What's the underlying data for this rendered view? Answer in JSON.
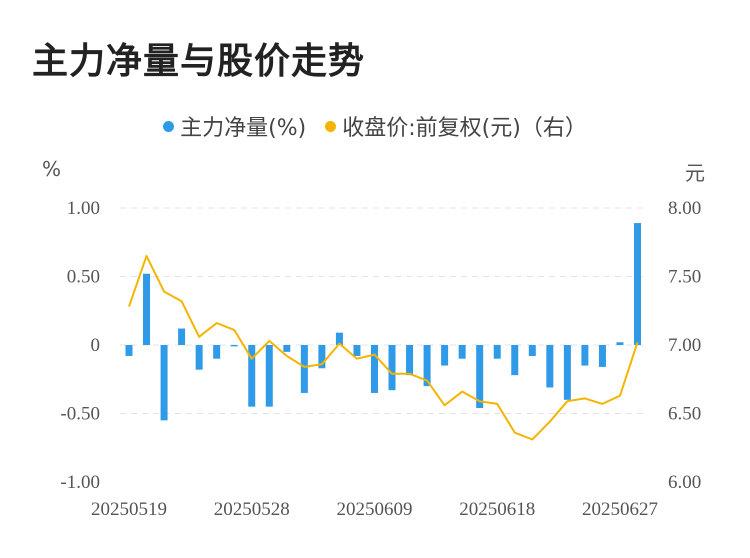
{
  "title": "主力净量与股价走势",
  "legend": [
    {
      "label": "主力净量(%)",
      "color": "#2f9be8"
    },
    {
      "label": "收盘价:前复权(元)（右）",
      "color": "#f4b400"
    }
  ],
  "left_unit": "%",
  "right_unit": "元",
  "chart_data": {
    "type": "bar",
    "categories": [
      "20250519",
      "20250520",
      "20250521",
      "20250522",
      "20250523",
      "20250526",
      "20250527",
      "20250528",
      "20250529",
      "20250530",
      "20250603",
      "20250604",
      "20250605",
      "20250606",
      "20250609",
      "20250610",
      "20250611",
      "20250612",
      "20250613",
      "20250616",
      "20250617",
      "20250618",
      "20250619",
      "20250620",
      "20250623",
      "20250624",
      "20250625",
      "20250626",
      "20250627",
      "20250630"
    ],
    "x_tick_labels": [
      "20250519",
      "20250528",
      "20250609",
      "20250618",
      "20250627"
    ],
    "x_tick_indices": [
      0,
      7,
      14,
      21,
      28
    ],
    "series": [
      {
        "name": "主力净量(%)",
        "type": "bar",
        "axis": "left",
        "values": [
          -0.08,
          0.52,
          -0.55,
          0.12,
          -0.18,
          -0.1,
          -0.01,
          -0.45,
          -0.45,
          -0.05,
          -0.35,
          -0.17,
          0.09,
          -0.08,
          -0.35,
          -0.33,
          -0.22,
          -0.3,
          -0.15,
          -0.1,
          -0.46,
          -0.1,
          -0.22,
          -0.08,
          -0.31,
          -0.4,
          -0.15,
          -0.16,
          0.02,
          0.89
        ]
      },
      {
        "name": "收盘价:前复权(元)（右）",
        "type": "line",
        "axis": "right",
        "values": [
          7.28,
          7.65,
          7.39,
          7.32,
          7.06,
          7.16,
          7.11,
          6.9,
          7.03,
          6.92,
          6.84,
          6.86,
          7.01,
          6.9,
          6.93,
          6.79,
          6.79,
          6.74,
          6.56,
          6.66,
          6.59,
          6.57,
          6.36,
          6.31,
          6.44,
          6.59,
          6.61,
          6.57,
          6.63,
          7.02
        ]
      }
    ],
    "left_axis": {
      "ylim": [
        -1.0,
        1.0
      ],
      "ticks": [
        "1.00",
        "0.50",
        "0",
        "-0.50",
        "-1.00"
      ]
    },
    "right_axis": {
      "ylim": [
        6.0,
        8.0
      ],
      "ticks": [
        "8.00",
        "7.50",
        "7.00",
        "6.50",
        "6.00"
      ]
    },
    "grid": "dashed"
  }
}
